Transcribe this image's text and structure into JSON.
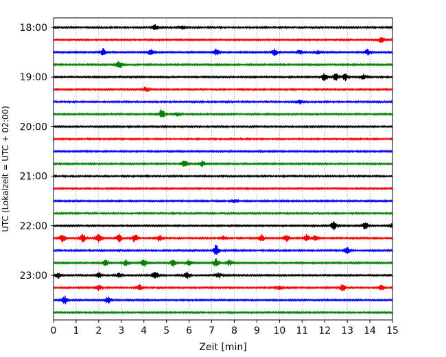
{
  "chart_data": {
    "type": "line",
    "title": "",
    "xlabel": "Zeit  [min]",
    "ylabel": "UTC (Lokalzeit = UTC + 02:00)",
    "xlim": [
      0,
      15
    ],
    "x_ticks": [
      "0",
      "1",
      "2",
      "3",
      "4",
      "5",
      "6",
      "7",
      "8",
      "9",
      "10",
      "11",
      "12",
      "13",
      "14",
      "15"
    ],
    "y_tick_labels": [
      "18:00",
      "19:00",
      "20:00",
      "21:00",
      "22:00",
      "23:00"
    ],
    "grid_x": true,
    "grid_y": false,
    "legend": "none",
    "trace_interval_min": 15,
    "trace_colors": [
      "#000000",
      "#ff0000",
      "#0000ff",
      "#008000"
    ],
    "series": [
      {
        "start": "18:00",
        "events": [
          {
            "t": 4.5,
            "amp": 4
          },
          {
            "t": 5.7,
            "amp": 3
          }
        ]
      },
      {
        "start": "18:15",
        "events": [
          {
            "t": 14.5,
            "amp": 4
          }
        ]
      },
      {
        "start": "18:30",
        "events": [
          {
            "t": 2.2,
            "amp": 5
          },
          {
            "t": 4.3,
            "amp": 4
          },
          {
            "t": 7.2,
            "amp": 5
          },
          {
            "t": 9.8,
            "amp": 5
          },
          {
            "t": 10.9,
            "amp": 3
          },
          {
            "t": 11.7,
            "amp": 3
          },
          {
            "t": 13.9,
            "amp": 4
          }
        ]
      },
      {
        "start": "18:45",
        "events": [
          {
            "t": 2.9,
            "amp": 6
          }
        ]
      },
      {
        "start": "19:00",
        "events": [
          {
            "t": 12.0,
            "amp": 6
          },
          {
            "t": 12.5,
            "amp": 5
          },
          {
            "t": 12.9,
            "amp": 5
          },
          {
            "t": 13.7,
            "amp": 4
          }
        ]
      },
      {
        "start": "19:15",
        "events": [
          {
            "t": 4.1,
            "amp": 4
          }
        ]
      },
      {
        "start": "19:30",
        "events": [
          {
            "t": 10.9,
            "amp": 3
          }
        ]
      },
      {
        "start": "19:45",
        "events": [
          {
            "t": 4.8,
            "amp": 7
          },
          {
            "t": 5.5,
            "amp": 3
          }
        ]
      },
      {
        "start": "20:00",
        "events": []
      },
      {
        "start": "20:15",
        "events": []
      },
      {
        "start": "20:30",
        "events": []
      },
      {
        "start": "20:45",
        "events": [
          {
            "t": 5.8,
            "amp": 5
          },
          {
            "t": 6.6,
            "amp": 4
          }
        ]
      },
      {
        "start": "21:00",
        "events": []
      },
      {
        "start": "21:15",
        "events": []
      },
      {
        "start": "21:30",
        "events": [
          {
            "t": 8.0,
            "amp": 3
          }
        ]
      },
      {
        "start": "21:45",
        "events": []
      },
      {
        "start": "22:00",
        "events": [
          {
            "t": 12.4,
            "amp": 7
          },
          {
            "t": 13.8,
            "amp": 6
          },
          {
            "t": 15.0,
            "amp": 3
          }
        ]
      },
      {
        "start": "22:15",
        "events": [
          {
            "t": 0.4,
            "amp": 6
          },
          {
            "t": 1.3,
            "amp": 6
          },
          {
            "t": 2.0,
            "amp": 6
          },
          {
            "t": 2.9,
            "amp": 6
          },
          {
            "t": 3.6,
            "amp": 6
          },
          {
            "t": 4.7,
            "amp": 5
          },
          {
            "t": 7.5,
            "amp": 3
          },
          {
            "t": 9.2,
            "amp": 5
          },
          {
            "t": 10.3,
            "amp": 5
          },
          {
            "t": 11.2,
            "amp": 5
          },
          {
            "t": 11.6,
            "amp": 4
          }
        ]
      },
      {
        "start": "22:30",
        "events": [
          {
            "t": 7.2,
            "amp": 8
          },
          {
            "t": 13.0,
            "amp": 6
          }
        ]
      },
      {
        "start": "22:45",
        "events": [
          {
            "t": 2.3,
            "amp": 4
          },
          {
            "t": 3.2,
            "amp": 5
          },
          {
            "t": 4.0,
            "amp": 6
          },
          {
            "t": 5.3,
            "amp": 5
          },
          {
            "t": 6.0,
            "amp": 5
          },
          {
            "t": 7.2,
            "amp": 6
          },
          {
            "t": 7.8,
            "amp": 4
          }
        ]
      },
      {
        "start": "23:00",
        "events": [
          {
            "t": 0.2,
            "amp": 4
          },
          {
            "t": 2.0,
            "amp": 4
          },
          {
            "t": 2.9,
            "amp": 3
          },
          {
            "t": 4.5,
            "amp": 7
          },
          {
            "t": 5.9,
            "amp": 6
          },
          {
            "t": 7.3,
            "amp": 4
          }
        ]
      },
      {
        "start": "23:15",
        "events": [
          {
            "t": 2.0,
            "amp": 4
          },
          {
            "t": 3.8,
            "amp": 4
          },
          {
            "t": 10.0,
            "amp": 3
          },
          {
            "t": 12.8,
            "amp": 5
          },
          {
            "t": 14.5,
            "amp": 4
          }
        ]
      },
      {
        "start": "23:30",
        "events": [
          {
            "t": 0.5,
            "amp": 6
          },
          {
            "t": 2.4,
            "amp": 5
          }
        ]
      },
      {
        "start": "23:45",
        "events": []
      }
    ]
  }
}
